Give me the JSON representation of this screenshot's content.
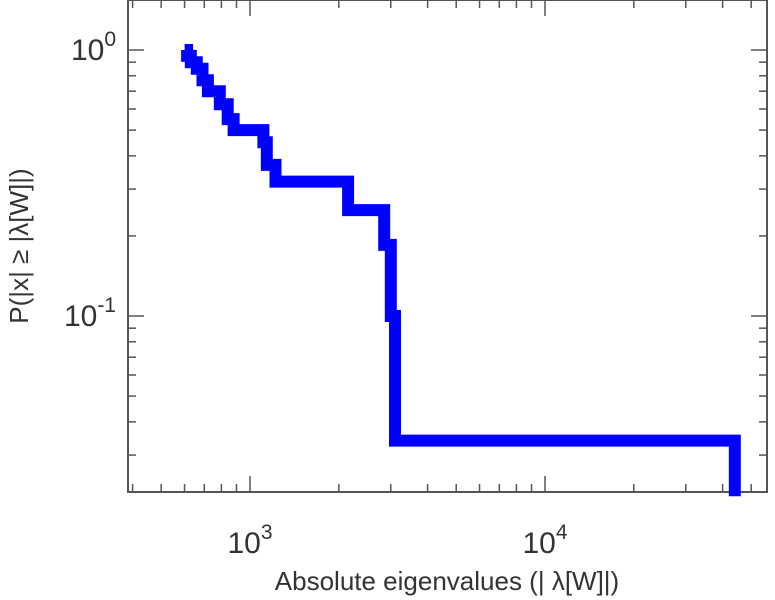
{
  "chart_data": {
    "type": "line",
    "title": "",
    "xlabel": "Absolute eigenvalues (|     λ[W]|)",
    "ylabel": "P(|x|  ≥ |λ[W]|)",
    "x_scale": "log",
    "y_scale": "log",
    "xlim": [
      400,
      52000
    ],
    "ylim": [
      0.021,
      1.6
    ],
    "x_ticks": [
      {
        "base": "10",
        "exp": "3",
        "value": 1000
      },
      {
        "base": "10",
        "exp": "4",
        "value": 10000
      }
    ],
    "y_ticks": [
      {
        "base": "10",
        "exp": "0",
        "value": 1
      },
      {
        "base": "10",
        "exp": "-1",
        "value": 0.1
      }
    ],
    "grid": false,
    "legend": "none",
    "series": [
      {
        "color": "#0000ff",
        "step": true,
        "points": [
          {
            "x": 600,
            "y": 1.0
          },
          {
            "x": 612,
            "y": 0.95
          },
          {
            "x": 630,
            "y": 0.9
          },
          {
            "x": 660,
            "y": 0.85
          },
          {
            "x": 690,
            "y": 0.77
          },
          {
            "x": 720,
            "y": 0.7
          },
          {
            "x": 790,
            "y": 0.625
          },
          {
            "x": 840,
            "y": 0.55
          },
          {
            "x": 880,
            "y": 0.5
          },
          {
            "x": 1110,
            "y": 0.45
          },
          {
            "x": 1140,
            "y": 0.37
          },
          {
            "x": 1220,
            "y": 0.32
          },
          {
            "x": 2150,
            "y": 0.25
          },
          {
            "x": 2850,
            "y": 0.185
          },
          {
            "x": 3000,
            "y": 0.1
          },
          {
            "x": 3100,
            "y": 0.1
          },
          {
            "x": 3100,
            "y": 0.034
          },
          {
            "x": 44000,
            "y": 0.034
          },
          {
            "x": 44000,
            "y": 0.021
          }
        ]
      }
    ]
  }
}
